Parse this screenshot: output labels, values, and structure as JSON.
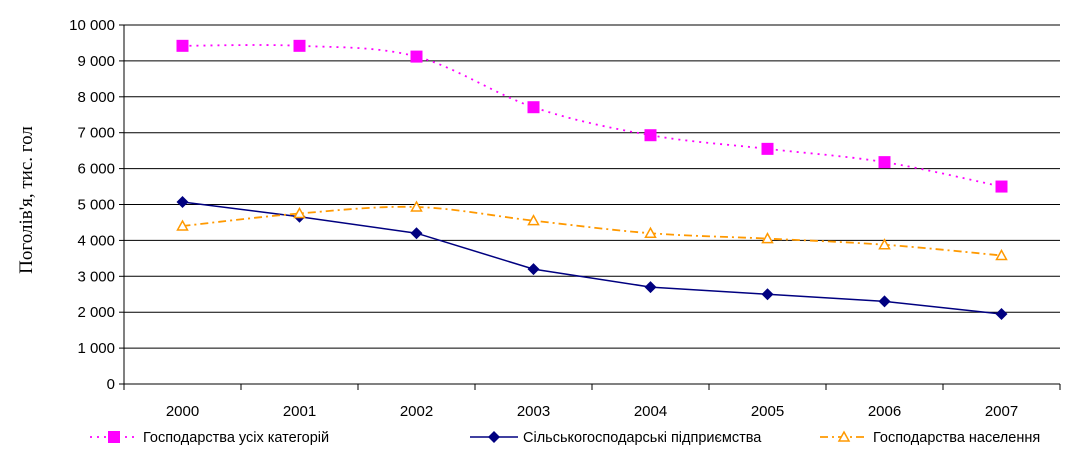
{
  "chart_data": {
    "type": "line",
    "title": "",
    "xlabel": "",
    "ylabel": "Поголів'я, тис. гол",
    "categories": [
      "2000",
      "2001",
      "2002",
      "2003",
      "2004",
      "2005",
      "2006",
      "2007"
    ],
    "ylim": [
      0,
      10000
    ],
    "yticks": [
      0,
      1000,
      2000,
      3000,
      4000,
      5000,
      6000,
      7000,
      8000,
      9000,
      10000
    ],
    "ytick_labels": [
      "0",
      "1 000",
      "2 000",
      "3 000",
      "4 000",
      "5 000",
      "6 000",
      "7 000",
      "8 000",
      "9 000",
      "10 000"
    ],
    "grid": true,
    "legend_position": "bottom",
    "series": [
      {
        "name": "Господарства усіх категорій",
        "values": [
          9420,
          9420,
          9120,
          7710,
          6930,
          6550,
          6180,
          5500
        ],
        "color": "#ff00ff",
        "line_style": "dotted",
        "marker": "square"
      },
      {
        "name": "Сільськогосподарські підприємства",
        "values": [
          5070,
          4660,
          4200,
          3200,
          2700,
          2500,
          2300,
          1950
        ],
        "color": "#000080",
        "line_style": "solid",
        "marker": "diamond"
      },
      {
        "name": "Господарства населення",
        "values": [
          4400,
          4750,
          4930,
          4550,
          4200,
          4050,
          3880,
          3580
        ],
        "color": "#ff9900",
        "line_style": "dash-dot",
        "marker": "triangle"
      }
    ]
  }
}
